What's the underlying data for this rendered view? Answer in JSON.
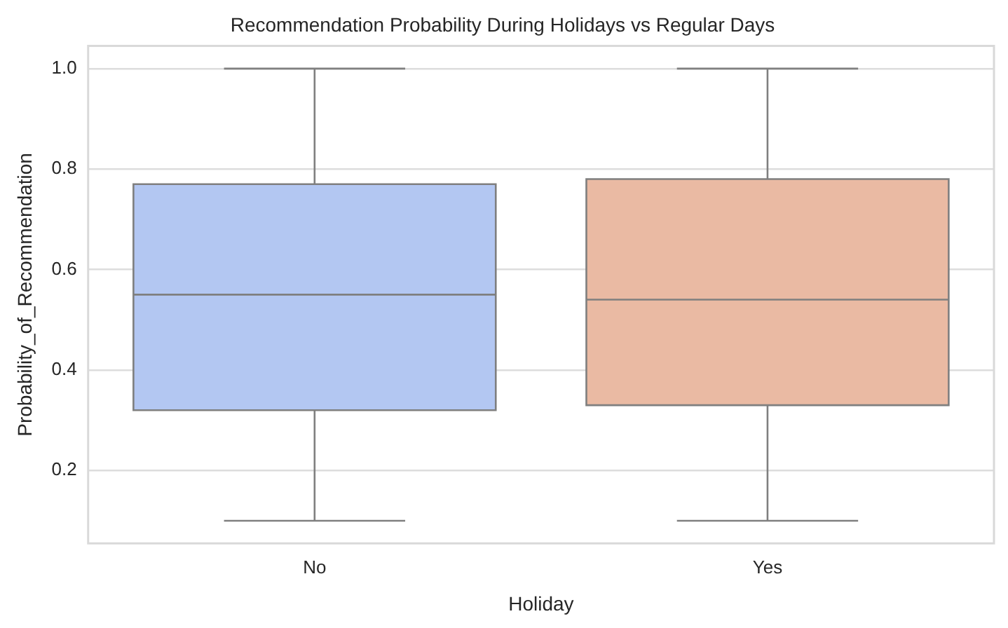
{
  "chart_data": {
    "type": "box",
    "title": "Recommendation Probability During Holidays vs Regular Days",
    "xlabel": "Holiday",
    "ylabel": "Probability_of_Recommendation",
    "categories": [
      "No",
      "Yes"
    ],
    "boxes": [
      {
        "low": 0.1,
        "q1": 0.32,
        "median": 0.55,
        "q3": 0.77,
        "high": 1.0
      },
      {
        "low": 0.1,
        "q1": 0.33,
        "median": 0.54,
        "q3": 0.78,
        "high": 1.0
      }
    ],
    "colors": [
      "#b3c7f2",
      "#eabaa3"
    ],
    "ylim": [
      0.055,
      1.045
    ],
    "yticks": [
      0.2,
      0.4,
      0.6,
      0.8,
      {
        "value": 1,
        "label": "1.0"
      }
    ],
    "grid": "y"
  }
}
